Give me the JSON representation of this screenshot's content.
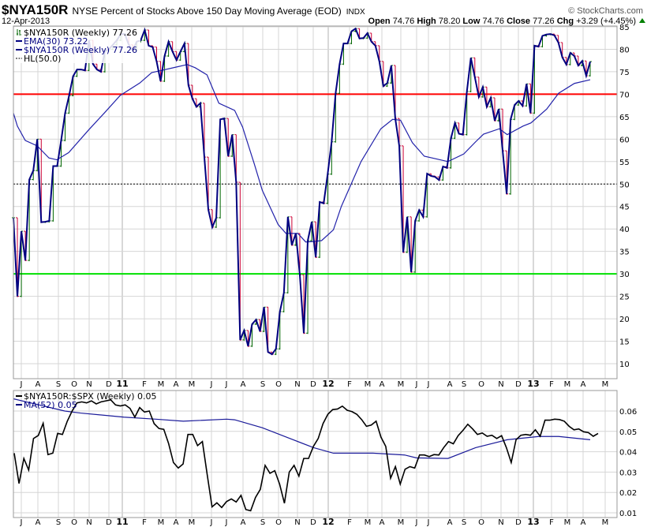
{
  "header": {
    "symbol": "$NYA150R",
    "description": "NYSE Percent of Stocks Above 150 Day Moving Average (EOD)",
    "exchange": "INDX",
    "date": "12-Apr-2013",
    "brand": "© StockCharts.com",
    "ohlc": {
      "open_label": "Open",
      "open": "74.76",
      "high_label": "High",
      "high": "78.20",
      "low_label": "Low",
      "low": "74.76",
      "close_label": "Close",
      "close": "77.26",
      "chg_label": "Chg",
      "chg": "+3.29 (+4.45%)",
      "direction_icon": "up-triangle-icon"
    }
  },
  "colors": {
    "bar_up": "#006600",
    "bar_down": "#cc0033",
    "close_line": "#000080",
    "ema": "#2222aa",
    "hline70": "#ff0000",
    "hline30": "#00e000",
    "ratio": "#000000",
    "ma": "#1a1a99",
    "grid": "#d6d6d6",
    "up_arrow": "#008000"
  },
  "chart_data": [
    {
      "type": "line",
      "title": "$NYA150R NYSE Percent of Stocks Above 150 Day Moving Average (EOD)",
      "legend": [
        "$NYA150R (Weekly) 77.26",
        "EMA(30) 73.22",
        "$NYA150R (Weekly) 77.26",
        "HL(50.0)"
      ],
      "legend_placement": "top-left",
      "ylim": [
        6.6,
        86
      ],
      "yticks": [
        "85",
        "80",
        "75",
        "70",
        "65",
        "60",
        "55",
        "50",
        "45",
        "40",
        "35",
        "30",
        "25",
        "20",
        "15",
        "10"
      ],
      "hlines": [
        70,
        50,
        30
      ],
      "x_range": [
        "2010-06-25",
        "2013-04-12"
      ],
      "frequency": "weekly",
      "close": [
        42.5,
        25,
        39.5,
        33,
        51,
        53,
        60,
        41.5,
        41.6,
        41.8,
        54,
        54,
        59.7,
        65.8,
        69.7,
        74,
        75.5,
        75.5,
        75.3,
        82,
        76.7,
        75.5,
        75,
        79.6,
        80,
        81,
        82,
        83.4,
        83.4,
        81,
        79.7,
        81.7,
        82,
        84.3,
        80.8,
        80.5,
        77.3,
        72.9,
        78.5,
        81.7,
        79.5,
        77.6,
        79.5,
        81.3,
        72,
        69,
        67.2,
        68,
        56,
        44.3,
        40.4,
        42.5,
        64.4,
        64.6,
        56.2,
        61,
        50.4,
        15.3,
        17.4,
        13.9,
        18.8,
        19.8,
        17.2,
        22.6,
        12.6,
        12.1,
        13.3,
        21.6,
        25.8,
        42.7,
        36.4,
        39,
        29.8,
        16.8,
        37.4,
        41.6,
        33.7,
        46,
        45.7,
        52.2,
        59.4,
        70.2,
        76.7,
        81.3,
        81.3,
        84,
        84.6,
        82.4,
        82.5,
        83.6,
        81.7,
        80.8,
        77.3,
        71.8,
        72.5,
        76.4,
        64.6,
        58.5,
        34.8,
        42.7,
        30.4,
        41.8,
        44.2,
        42.7,
        52.3,
        51.8,
        51.6,
        50.9,
        53.9,
        53.6,
        60.2,
        63.6,
        61.2,
        61,
        70.6,
        78.1,
        73.8,
        69.4,
        71.6,
        67.2,
        69.2,
        64.1,
        66.7,
        57.4,
        47.8,
        64.4,
        67.6,
        68.5,
        67.4,
        72.3,
        65.8,
        80.8,
        80.6,
        83,
        83.3,
        83.4,
        83.1,
        81.5,
        78.2,
        76.6,
        79.2,
        78.5,
        76.4,
        77.4,
        74.1,
        77.26
      ],
      "ema30": [
        [
          0,
          65.8
        ],
        [
          1,
          62.9
        ],
        [
          3,
          59.7
        ],
        [
          6,
          58.5
        ],
        [
          9,
          55.8
        ],
        [
          11,
          55.4
        ],
        [
          14,
          57
        ],
        [
          19,
          62
        ],
        [
          23,
          65.8
        ],
        [
          27,
          69.7
        ],
        [
          32,
          72.5
        ],
        [
          35,
          74.8
        ],
        [
          37,
          75.2
        ],
        [
          41,
          76
        ],
        [
          44,
          76.6
        ],
        [
          46,
          75.9
        ],
        [
          49,
          74.3
        ],
        [
          52,
          68
        ],
        [
          56,
          66.4
        ],
        [
          58,
          62.7
        ],
        [
          61,
          54.4
        ],
        [
          63,
          48.6
        ],
        [
          67,
          41
        ],
        [
          69,
          39
        ],
        [
          72,
          39
        ],
        [
          74,
          37.1
        ],
        [
          76,
          37.2
        ],
        [
          78,
          37.4
        ],
        [
          81,
          39.8
        ],
        [
          83,
          45
        ],
        [
          88,
          55
        ],
        [
          93,
          62.3
        ],
        [
          96,
          64.4
        ],
        [
          98,
          64.2
        ],
        [
          101,
          59.2
        ],
        [
          104,
          56.2
        ],
        [
          110,
          55
        ],
        [
          114,
          56.7
        ],
        [
          117,
          59.4
        ],
        [
          119,
          61.1
        ],
        [
          123,
          62.3
        ],
        [
          125,
          61
        ],
        [
          129,
          62.9
        ],
        [
          131,
          63.6
        ],
        [
          135,
          66.7
        ],
        [
          138,
          70.2
        ],
        [
          142,
          72.4
        ],
        [
          146,
          73.22
        ]
      ]
    },
    {
      "type": "line",
      "title": "$NYA150R:$SPX (Weekly)",
      "legend": [
        "$NYA150R:$SPX (Weekly) 0.05",
        "MA(52) 0.05"
      ],
      "legend_placement": "top-left",
      "ylim": [
        0.0077,
        0.0697
      ],
      "yticks": [
        "0.06",
        "0.05",
        "0.04",
        "0.03",
        "0.02",
        "0.01"
      ],
      "ratio": [
        0.0393,
        0.0244,
        0.0367,
        0.031,
        0.0465,
        0.048,
        0.054,
        0.0386,
        0.0393,
        0.049,
        0.0485,
        0.055,
        0.06,
        0.064,
        0.0645,
        0.064,
        0.065,
        0.0635,
        0.0645,
        0.065,
        0.0655,
        0.063,
        0.0625,
        0.063,
        0.0613,
        0.057,
        0.0617,
        0.0595,
        0.06,
        0.0538,
        0.0514,
        0.051,
        0.044,
        0.0347,
        0.032,
        0.034,
        0.0485,
        0.0485,
        0.043,
        0.045,
        0.0287,
        0.0129,
        0.0149,
        0.0126,
        0.0155,
        0.0168,
        0.0153,
        0.0186,
        0.0116,
        0.011,
        0.0175,
        0.0215,
        0.0333,
        0.0294,
        0.0307,
        0.0241,
        0.0147,
        0.03,
        0.0333,
        0.028,
        0.0367,
        0.0367,
        0.0426,
        0.0465,
        0.0538,
        0.0584,
        0.0607,
        0.061,
        0.0624,
        0.0604,
        0.0597,
        0.0584,
        0.0558,
        0.0525,
        0.0531,
        0.055,
        0.0472,
        0.0426,
        0.027,
        0.0327,
        0.0241,
        0.0314,
        0.0327,
        0.032,
        0.0384,
        0.0384,
        0.0376,
        0.0386,
        0.0384,
        0.042,
        0.045,
        0.0439,
        0.0479,
        0.0505,
        0.0535,
        0.0512,
        0.0485,
        0.0492,
        0.0476,
        0.0481,
        0.0465,
        0.0479,
        0.042,
        0.0347,
        0.0459,
        0.0481,
        0.0485,
        0.0481,
        0.0508,
        0.0476,
        0.0555,
        0.0555,
        0.056,
        0.0558,
        0.055,
        0.0525,
        0.0508,
        0.0512,
        0.0498,
        0.0494,
        0.0476,
        0.049
      ],
      "ma52": [
        [
          0,
          0.066
        ],
        [
          13,
          0.06
        ],
        [
          17,
          0.059
        ],
        [
          28,
          0.057
        ],
        [
          36,
          0.056
        ],
        [
          43,
          0.055
        ],
        [
          54,
          0.056
        ],
        [
          56,
          0.0557
        ],
        [
          63,
          0.0518
        ],
        [
          70,
          0.0465
        ],
        [
          76,
          0.042
        ],
        [
          81,
          0.0393
        ],
        [
          91,
          0.0393
        ],
        [
          99,
          0.0384
        ],
        [
          102,
          0.037
        ],
        [
          110,
          0.0367
        ],
        [
          117,
          0.042
        ],
        [
          125,
          0.0459
        ],
        [
          133,
          0.0475
        ],
        [
          138,
          0.0475
        ],
        [
          146,
          0.0459
        ]
      ]
    }
  ],
  "x_axis": {
    "months": [
      "J",
      "A",
      "S",
      "O",
      "N",
      "D",
      "11",
      "F",
      "M",
      "A",
      "M",
      "J",
      "J",
      "A",
      "S",
      "O",
      "N",
      "D",
      "12",
      "F",
      "M",
      "A",
      "M",
      "J",
      "J",
      "A",
      "S",
      "O",
      "N",
      "D",
      "13",
      "F",
      "M",
      "A",
      "M"
    ]
  }
}
